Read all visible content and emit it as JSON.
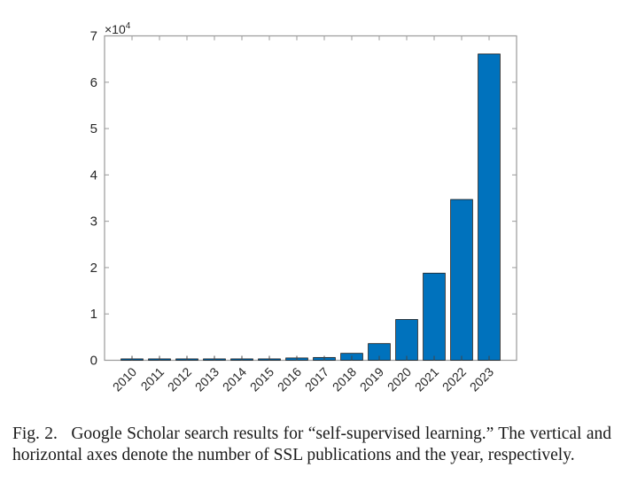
{
  "chart_data": {
    "type": "bar",
    "title": "",
    "xlabel": "",
    "ylabel": "",
    "y_multiplier_label": "×10^4",
    "y_multiplier_base": "×10",
    "y_multiplier_exp": "4",
    "categories": [
      "2010",
      "2011",
      "2012",
      "2013",
      "2014",
      "2015",
      "2016",
      "2017",
      "2018",
      "2019",
      "2020",
      "2021",
      "2022",
      "2023"
    ],
    "values": [
      300,
      300,
      300,
      300,
      300,
      300,
      500,
      600,
      1500,
      3600,
      8800,
      18800,
      34700,
      66100
    ],
    "ylim": [
      0,
      70000
    ],
    "yticks": [
      0,
      1,
      2,
      3,
      4,
      5,
      6,
      7
    ],
    "ytick_labels": [
      "0",
      "1",
      "2",
      "3",
      "4",
      "5",
      "6",
      "7"
    ],
    "grid": false,
    "legend": null,
    "bar_color": "#0072BD",
    "bar_edge_color": "#1a1a1a",
    "axis_color": "#9a9a9a"
  },
  "caption": {
    "label": "Fig. 2.",
    "text": "Google Scholar search results for “self-supervised learning.” The vertical and horizontal axes denote the number of SSL publications and the year, respectively."
  }
}
